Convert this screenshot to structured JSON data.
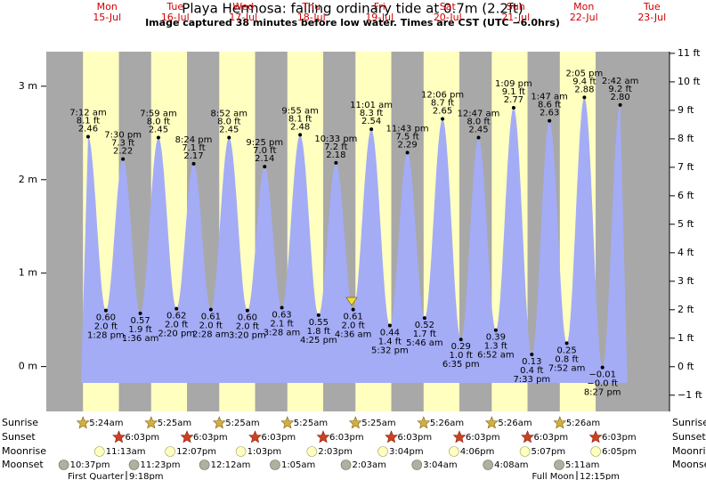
{
  "chart_data": {
    "type": "tide",
    "title": "Playa Hermosa: falling  ordinary tide at 0.7m (2.2ft)",
    "subtitle": "Image captured 38 minutes before low water. Times are CST (UTC −6.0hrs)",
    "days": [
      {
        "weekday": "Mon",
        "date": "15-Jul"
      },
      {
        "weekday": "Tue",
        "date": "16-Jul"
      },
      {
        "weekday": "Wed",
        "date": "17-Jul"
      },
      {
        "weekday": "Thu",
        "date": "18-Jul"
      },
      {
        "weekday": "Fri",
        "date": "19-Jul"
      },
      {
        "weekday": "Sat",
        "date": "20-Jul"
      },
      {
        "weekday": "Sun",
        "date": "21-Jul"
      },
      {
        "weekday": "Mon",
        "date": "22-Jul"
      },
      {
        "weekday": "Tue",
        "date": "23-Jul"
      }
    ],
    "ylim": [
      -0.48,
      3.37
    ],
    "yticks": [
      {
        "value": 0,
        "label": "0 m"
      },
      {
        "value": 1,
        "label": "1 m"
      },
      {
        "value": 2,
        "label": "2 m"
      },
      {
        "value": 3,
        "label": "3 m"
      }
    ],
    "y2lim": [
      -1.57,
      11.06
    ],
    "y2ticks": [
      {
        "value": -1,
        "label": "−1 ft"
      },
      {
        "value": 0,
        "label": "0 ft"
      },
      {
        "value": 1,
        "label": "1 ft"
      },
      {
        "value": 2,
        "label": "2 ft"
      },
      {
        "value": 3,
        "label": "3 ft"
      },
      {
        "value": 4,
        "label": "4 ft"
      },
      {
        "value": 5,
        "label": "5 ft"
      },
      {
        "value": 6,
        "label": "6 ft"
      },
      {
        "value": 7,
        "label": "7 ft"
      },
      {
        "value": 8,
        "label": "8 ft"
      },
      {
        "value": 9,
        "label": "9 ft"
      },
      {
        "value": 10,
        "label": "10 ft"
      },
      {
        "value": 11,
        "label": "11 ft"
      }
    ],
    "extremes": {
      "dates": [
        "15-Jul",
        "15-Jul",
        "15-Jul",
        "16-Jul",
        "16-Jul",
        "16-Jul",
        "16-Jul",
        "17-Jul",
        "17-Jul",
        "17-Jul",
        "17-Jul",
        "18-Jul",
        "18-Jul",
        "18-Jul",
        "18-Jul",
        "19-Jul",
        "19-Jul",
        "19-Jul",
        "19-Jul",
        "20-Jul",
        "20-Jul",
        "20-Jul",
        "21-Jul",
        "21-Jul",
        "21-Jul",
        "21-Jul",
        "22-Jul",
        "22-Jul",
        "22-Jul",
        "22-Jul",
        "23-Jul"
      ],
      "times": [
        "7:12 am",
        "1:28 pm",
        "7:30 pm",
        "1:36 am",
        "7:59 am",
        "2:20 pm",
        "8:24 pm",
        "2:28 am",
        "8:52 am",
        "3:20 pm",
        "9:25 pm",
        "3:28 am",
        "9:55 am",
        "4:25 pm",
        "10:33 pm",
        "4:36 am",
        "11:01 am",
        "5:32 pm",
        "11:43 pm",
        "5:46 am",
        "12:06 pm",
        "6:35 pm",
        "12:47 am",
        "6:52 am",
        "1:09 pm",
        "7:33 pm",
        "1:47 am",
        "7:52 am",
        "2:05 pm",
        "8:27 pm",
        "2:42 am"
      ],
      "values": [
        2.46,
        0.6,
        2.22,
        0.57,
        2.45,
        0.62,
        2.17,
        0.61,
        2.45,
        0.6,
        2.14,
        0.63,
        2.48,
        0.55,
        2.18,
        0.61,
        2.54,
        0.44,
        2.29,
        0.52,
        2.65,
        0.29,
        2.45,
        0.39,
        2.77,
        0.13,
        2.63,
        0.25,
        2.88,
        -0.01,
        2.8
      ],
      "value_labels": [
        "2.46",
        "0.60",
        "2.22",
        "0.57",
        "2.45",
        "0.62",
        "2.17",
        "0.61",
        "2.45",
        "0.60",
        "2.14",
        "0.63",
        "2.48",
        "0.55",
        "2.18",
        "0.61",
        "2.54",
        "0.44",
        "2.29",
        "0.52",
        "2.65",
        "0.29",
        "2.45",
        "0.39",
        "2.77",
        "0.13",
        "2.63",
        "0.25",
        "2.88",
        "−0.01",
        "2.80"
      ],
      "ft_labels": [
        "8.1 ft",
        "2.0 ft",
        "7.3 ft",
        "1.9 ft",
        "8.0 ft",
        "2.0 ft",
        "7.1 ft",
        "2.0 ft",
        "8.0 ft",
        "2.0 ft",
        "7.0 ft",
        "2.1 ft",
        "8.1 ft",
        "1.8 ft",
        "7.2 ft",
        "2.0 ft",
        "8.3 ft",
        "1.4 ft",
        "7.5 ft",
        "1.7 ft",
        "8.7 ft",
        "1.0 ft",
        "8.0 ft",
        "1.3 ft",
        "9.1 ft",
        "0.4 ft",
        "8.6 ft",
        "0.8 ft",
        "9.4 ft",
        "−0.0 ft",
        "9.2 ft"
      ]
    },
    "area_color": "#a4acf6",
    "day_color": "#ffffc0",
    "night_color": "#a8a8a8",
    "row_labels": [
      "Sunrise",
      "Sunset",
      "Moonrise",
      "Moonset"
    ],
    "sunrise": {
      "dates": [
        "15-Jul",
        "16-Jul",
        "17-Jul",
        "18-Jul",
        "19-Jul",
        "20-Jul",
        "21-Jul",
        "22-Jul"
      ],
      "times": [
        "5:24am",
        "5:25am",
        "5:25am",
        "5:25am",
        "5:25am",
        "5:26am",
        "5:26am",
        "5:26am"
      ]
    },
    "sunset": {
      "dates": [
        "15-Jul",
        "16-Jul",
        "17-Jul",
        "18-Jul",
        "19-Jul",
        "20-Jul",
        "21-Jul",
        "22-Jul"
      ],
      "times": [
        "6:03pm",
        "6:03pm",
        "6:03pm",
        "6:03pm",
        "6:03pm",
        "6:03pm",
        "6:03pm",
        "6:03pm"
      ]
    },
    "moonrise": {
      "dates": [
        "15-Jul",
        "16-Jul",
        "17-Jul",
        "18-Jul",
        "19-Jul",
        "20-Jul",
        "21-Jul",
        "22-Jul"
      ],
      "times": [
        "11:13am",
        "12:07pm",
        "1:03pm",
        "2:03pm",
        "3:04pm",
        "4:06pm",
        "5:07pm",
        "6:05pm"
      ]
    },
    "moonset": {
      "dates": [
        "14-Jul",
        "15-Jul",
        "17-Jul",
        "18-Jul",
        "19-Jul",
        "20-Jul",
        "21-Jul",
        "22-Jul"
      ],
      "times": [
        "10:37pm",
        "11:23pm",
        "12:12am",
        "1:05am",
        "2:03am",
        "3:04am",
        "4:08am",
        "5:11am"
      ]
    },
    "moon_phases": [
      {
        "label": "First Quarter",
        "time": "9:18pm"
      },
      {
        "label": "Full Moon",
        "time": "12:15pm"
      }
    ]
  }
}
